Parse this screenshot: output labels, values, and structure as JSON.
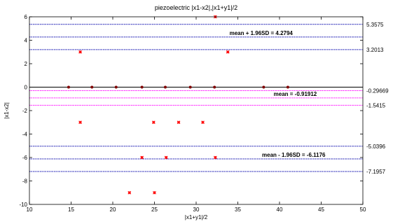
{
  "chart_data": {
    "type": "scatter",
    "title": "piezoelectric  |x1-x2|,|x1+y1|/2",
    "xlabel": "|x1+y1|/2",
    "ylabel": "|x1-x2|",
    "xlim": [
      10,
      50
    ],
    "ylim": [
      -10,
      6
    ],
    "xticks": [
      "10",
      "15",
      "20",
      "25",
      "30",
      "35",
      "40",
      "45",
      "50"
    ],
    "yticks": [
      "-10",
      "-8",
      "-6",
      "-4",
      "-2",
      "0",
      "2",
      "4",
      "6"
    ],
    "grid": false,
    "points": [
      {
        "x": 32.3,
        "y": 6
      },
      {
        "x": 16.1,
        "y": 3
      },
      {
        "x": 33.8,
        "y": 3
      },
      {
        "x": 14.7,
        "y": 0
      },
      {
        "x": 17.5,
        "y": 0
      },
      {
        "x": 20.4,
        "y": 0
      },
      {
        "x": 23.5,
        "y": 0
      },
      {
        "x": 26.3,
        "y": 0
      },
      {
        "x": 29.3,
        "y": 0
      },
      {
        "x": 32.2,
        "y": 0
      },
      {
        "x": 38.1,
        "y": 0
      },
      {
        "x": 41.0,
        "y": 0
      },
      {
        "x": 16.1,
        "y": -3
      },
      {
        "x": 24.9,
        "y": -3
      },
      {
        "x": 27.9,
        "y": -3
      },
      {
        "x": 30.8,
        "y": -3
      },
      {
        "x": 23.5,
        "y": -6
      },
      {
        "x": 26.4,
        "y": -6
      },
      {
        "x": 32.3,
        "y": -6
      },
      {
        "x": 22.0,
        "y": -9
      },
      {
        "x": 25.0,
        "y": -9
      }
    ],
    "reference_lines": [
      {
        "y": 5.3575,
        "label": "5.3575",
        "color": "#0000aa",
        "style": "dotted"
      },
      {
        "y": 4.2794,
        "label": "",
        "color": "#0000aa",
        "style": "dotted"
      },
      {
        "y": 3.2013,
        "label": "3.2013",
        "color": "#0000aa",
        "style": "dotted"
      },
      {
        "y": -0.29669,
        "label": "-0.29669",
        "color": "#ff00ff",
        "style": "dotted"
      },
      {
        "y": -0.91912,
        "label": "",
        "color": "#ff00ff",
        "style": "dotted"
      },
      {
        "y": -1.5415,
        "label": "-1.5415",
        "color": "#ff00ff",
        "style": "dotted"
      },
      {
        "y": -5.0396,
        "label": "-5.0396",
        "color": "#0000aa",
        "style": "dotted"
      },
      {
        "y": -6.1176,
        "label": "",
        "color": "#0000aa",
        "style": "dotted"
      },
      {
        "y": -7.1957,
        "label": "-7.1957",
        "color": "#0000aa",
        "style": "dotted"
      }
    ],
    "zero_line": {
      "y": 0,
      "color": "#000000"
    },
    "annotations": [
      {
        "text": "mean + 1.96SD = 4.2794",
        "x": 34,
        "y": 4.2794
      },
      {
        "text": "mean = -0.91912",
        "x": 39.3,
        "y": -0.91912
      },
      {
        "text": "mean - 1.96SD = -6.1176",
        "x": 37.9,
        "y": -6.1176
      }
    ],
    "marker_color": "#ff0000",
    "dot_color": "#800000"
  }
}
